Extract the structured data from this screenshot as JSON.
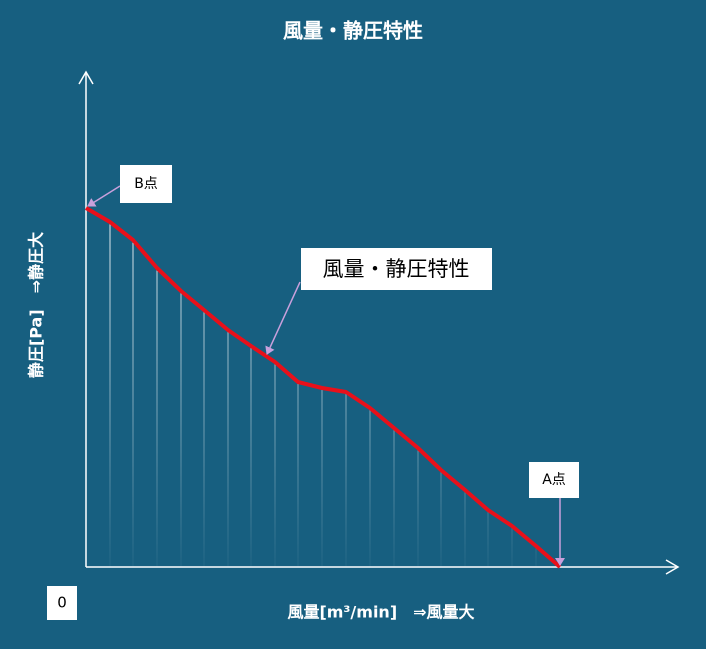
{
  "title": "風量・静圧特性",
  "y_axis_label": "静圧[Pa]　⇒静圧大",
  "x_axis_label": "風量[m³/min]　⇒風量大",
  "origin_label": "0",
  "callouts": {
    "b_point": "B点",
    "curve": "風量・静圧特性",
    "a_point": "A点"
  }
}
